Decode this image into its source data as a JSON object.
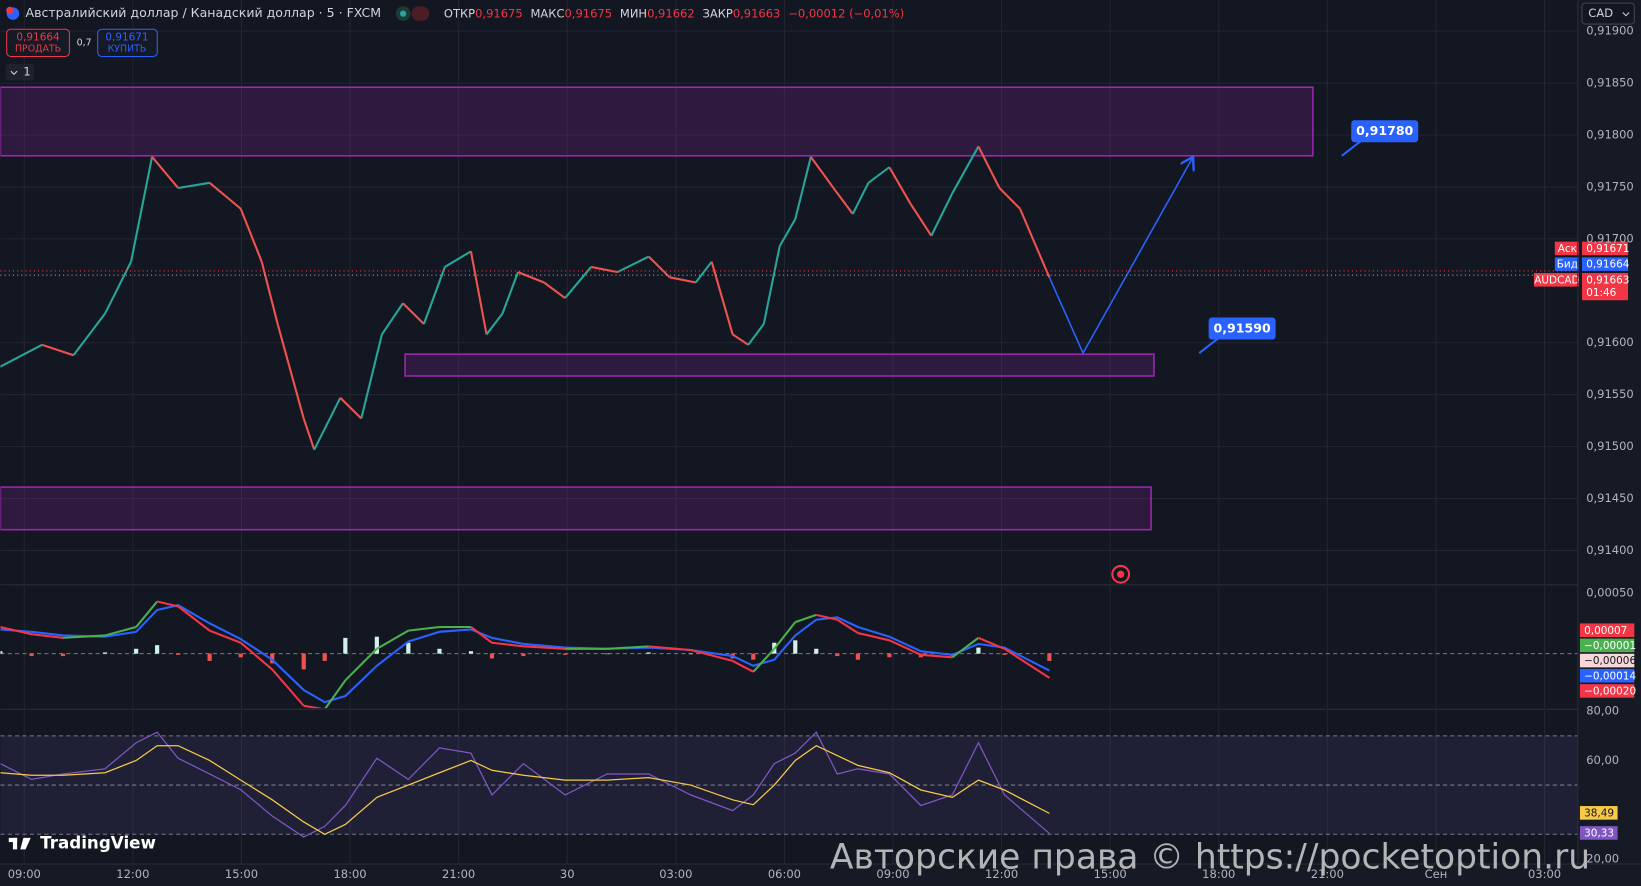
{
  "header": {
    "title": "Австралийский доллар / Канадский доллар · 5 · FXCM",
    "ohlc": [
      {
        "label": "ОТКР",
        "value": "0,91675"
      },
      {
        "label": "МАКС",
        "value": "0,91675"
      },
      {
        "label": "МИН",
        "value": "0,91662"
      },
      {
        "label": "ЗАКР",
        "value": "0,91663"
      }
    ],
    "change": "−0,00012 (−0,01%)",
    "sell": {
      "price": "0,91664",
      "label": "ПРОДАТЬ"
    },
    "spread": "0,7",
    "buy": {
      "price": "0,91671",
      "label": "КУПИТЬ"
    },
    "layers": "1",
    "currency": "CAD"
  },
  "price_labels": [
    {
      "label": "Аск",
      "value": "0,91671",
      "color": "#f23645"
    },
    {
      "label": "Бид",
      "value": "0,91664",
      "color": "#2962ff"
    },
    {
      "label": "AUDCAD",
      "value": "0,91663",
      "time": "01:46",
      "color": "#f23645"
    }
  ],
  "watermark": "TradingView",
  "copyright": "Авторские права © https://pocketoption.ru",
  "chart_data": [
    {
      "type": "line",
      "xlim": [
        -0.66,
        42.92
      ],
      "ylim": [
        0.91368,
        0.9193
      ],
      "xticks": [
        {
          "value": 0,
          "label": "09:00"
        },
        {
          "value": 3,
          "label": "12:00"
        },
        {
          "value": 6,
          "label": "15:00"
        },
        {
          "value": 9,
          "label": "18:00"
        },
        {
          "value": 12,
          "label": "21:00"
        },
        {
          "value": 15,
          "label": "30"
        },
        {
          "value": 18,
          "label": "03:00"
        },
        {
          "value": 21,
          "label": "06:00"
        },
        {
          "value": 24,
          "label": "09:00"
        },
        {
          "value": 27,
          "label": "12:00"
        },
        {
          "value": 30,
          "label": "15:00"
        },
        {
          "value": 33,
          "label": "18:00"
        },
        {
          "value": 36,
          "label": "21:00"
        },
        {
          "value": 39,
          "label": "Сен"
        },
        {
          "value": 42,
          "label": "03:00"
        }
      ],
      "yticks": [
        {
          "value": 0.919,
          "label": "0,91900"
        },
        {
          "value": 0.9185,
          "label": "0,91850"
        },
        {
          "value": 0.918,
          "label": "0,91800"
        },
        {
          "value": 0.9175,
          "label": "0,91750"
        },
        {
          "value": 0.917,
          "label": "0,91700"
        },
        {
          "value": 0.916,
          "label": "0,91600"
        },
        {
          "value": 0.9155,
          "label": "0,91550"
        },
        {
          "value": 0.915,
          "label": "0,91500"
        },
        {
          "value": 0.9145,
          "label": "0,91450"
        },
        {
          "value": 0.914,
          "label": "0,91400"
        }
      ],
      "grid": true,
      "color_up": "#26a69a",
      "color_down": "#ef5350",
      "x": [
        -0.66,
        0.49,
        1.36,
        2.23,
        2.95,
        3.53,
        4.25,
        5.12,
        5.98,
        6.56,
        7.0,
        7.72,
        8.01,
        8.73,
        9.31,
        9.88,
        10.46,
        11.04,
        11.62,
        12.34,
        12.77,
        13.21,
        13.64,
        14.36,
        14.94,
        15.66,
        16.39,
        17.25,
        17.83,
        18.55,
        18.99,
        19.57,
        20.0,
        20.43,
        20.87,
        21.3,
        21.73,
        22.46,
        22.89,
        23.32,
        23.9,
        24.48,
        25.06,
        25.64,
        26.36,
        26.94,
        27.51,
        27.95,
        28.32
      ],
      "values": [
        0.91577,
        0.91598,
        0.91588,
        0.91628,
        0.91678,
        0.91779,
        0.91749,
        0.91754,
        0.91729,
        0.91678,
        0.91618,
        0.91527,
        0.91497,
        0.91547,
        0.91527,
        0.91608,
        0.91638,
        0.91618,
        0.91673,
        0.91688,
        0.91608,
        0.91628,
        0.91668,
        0.91658,
        0.91643,
        0.91673,
        0.91668,
        0.91683,
        0.91663,
        0.91658,
        0.91678,
        0.91608,
        0.91598,
        0.91618,
        0.91693,
        0.91719,
        0.91779,
        0.91744,
        0.91724,
        0.91754,
        0.91769,
        0.91734,
        0.91703,
        0.91744,
        0.91789,
        0.91749,
        0.91729,
        0.91693,
        0.91663
      ],
      "zone_color": "#9c27b0",
      "zones": [
        {
          "x": [
            -0.66,
            35.6
          ],
          "y": [
            0.9178,
            0.91846
          ]
        },
        {
          "x": [
            10.52,
            31.21
          ],
          "y": [
            0.91568,
            0.91589
          ]
        },
        {
          "x": [
            -0.66,
            31.13
          ],
          "y": [
            0.9142,
            0.91461
          ]
        }
      ],
      "projection": {
        "color": "#2962ff",
        "x": [
          28.32,
          29.25,
          32.29
        ],
        "values": [
          0.91663,
          0.9159,
          0.91779
        ]
      },
      "annotation_color": "#2962ff",
      "annotations": [
        {
          "x": 36.4,
          "value": 0.9178,
          "label": "0,91780"
        },
        {
          "x": 32.46,
          "value": 0.9159,
          "label": "0,91590"
        }
      ]
    },
    {
      "type": "macd",
      "xlim": [
        -0.66,
        42.92
      ],
      "ylim": [
        -0.00045,
        0.00056
      ],
      "yticks": [
        {
          "value": 0.0005,
          "label": "0,00050"
        }
      ],
      "x": [
        -0.66,
        0.2,
        1.07,
        2.23,
        3.09,
        3.67,
        4.25,
        5.12,
        5.98,
        6.85,
        7.72,
        8.3,
        8.87,
        9.74,
        10.61,
        11.47,
        12.34,
        12.92,
        13.79,
        14.94,
        16.1,
        17.25,
        18.41,
        19.57,
        20.14,
        20.72,
        21.3,
        21.88,
        22.46,
        23.03,
        23.9,
        24.77,
        25.64,
        26.36,
        27.08,
        28.32
      ],
      "color_up": "#4caf50",
      "color_down": "#f23645",
      "series": [
        {
          "values": [
            0.00022,
            0.00016,
            0.00013,
            0.00015,
            0.00022,
            0.00043,
            0.00039,
            0.00019,
            9e-05,
            -0.00013,
            -0.00043,
            -0.00046,
            -0.00022,
            4e-05,
            0.00019,
            0.00022,
            0.00022,
            9e-05,
            6e-05,
            4e-05,
            4e-05,
            6e-05,
            3e-05,
            -6e-05,
            -0.00015,
            4e-05,
            0.00026,
            0.00032,
            0.00028,
            0.00017,
            0.00011,
            -1e-05,
            -3e-05,
            0.00013,
            4e-05,
            -0.0002
          ]
        },
        {
          "color": "#2962ff",
          "values": [
            0.0002,
            0.00018,
            0.00015,
            0.00014,
            0.00018,
            0.00036,
            0.0004,
            0.00025,
            0.00012,
            -5e-05,
            -0.0003,
            -0.0004,
            -0.00035,
            -0.0001,
            0.0001,
            0.00018,
            0.0002,
            0.00013,
            8e-05,
            5e-05,
            4e-05,
            5e-05,
            3e-05,
            -2e-05,
            -0.0001,
            -5e-05,
            0.00015,
            0.00028,
            0.0003,
            0.00022,
            0.00014,
            2e-05,
            -1e-05,
            8e-05,
            5e-05,
            -0.00014
          ]
        }
      ],
      "histogram": {
        "colors": [
          "#d1f2eb",
          "#ef5350"
        ],
        "values": [
          2e-05,
          -2e-05,
          -2e-05,
          1e-05,
          4e-05,
          7e-05,
          -1e-05,
          -6e-05,
          -3e-05,
          -8e-05,
          -0.00013,
          -6e-05,
          0.00013,
          0.00014,
          9e-05,
          4e-05,
          2e-05,
          -4e-05,
          -2e-05,
          -1e-05,
          0,
          1e-05,
          0,
          -4e-05,
          -5e-05,
          9e-05,
          0.00011,
          4e-05,
          -2e-05,
          -5e-05,
          -3e-05,
          -3e-05,
          -2e-05,
          5e-05,
          -1e-05,
          -6e-05
        ]
      },
      "axis_labels": [
        {
          "label": "0,00007",
          "color": "#f23645"
        },
        {
          "label": "−0,00001",
          "color": "#4caf50"
        },
        {
          "label": "−0,00006",
          "color": "#f8d7da",
          "text_color": "#131722"
        },
        {
          "label": "−0,00014",
          "color": "#2962ff"
        },
        {
          "label": "−0,00020",
          "color": "#f23645"
        }
      ]
    },
    {
      "type": "rsi",
      "xlim": [
        -0.66,
        42.92
      ],
      "ylim": [
        17.9,
        80.4
      ],
      "yticks": [
        {
          "value": 80,
          "label": "80,00"
        },
        {
          "value": 60,
          "label": "60,00"
        },
        {
          "value": 20,
          "label": "20,00"
        }
      ],
      "levels": [
        70,
        50,
        30
      ],
      "band_color": "#7e57c2",
      "x": [
        -0.66,
        0.2,
        1.07,
        2.23,
        3.09,
        3.67,
        4.25,
        5.12,
        5.98,
        6.85,
        7.72,
        8.3,
        8.87,
        9.74,
        10.61,
        11.47,
        12.34,
        12.92,
        13.79,
        14.94,
        16.1,
        17.25,
        18.41,
        19.57,
        20.14,
        20.72,
        21.3,
        21.88,
        22.46,
        23.03,
        23.9,
        24.77,
        25.64,
        26.36,
        27.08,
        28.32
      ],
      "series": [
        {
          "color": "#7e57c2",
          "last_label": "30,33",
          "label_text_color": "#ffffff",
          "values": [
            58.7,
            52.3,
            54.5,
            56.6,
            67.2,
            71.5,
            60.9,
            54.5,
            48.1,
            37.4,
            28.9,
            33.2,
            41.7,
            60.9,
            52.3,
            65.1,
            63.0,
            46.0,
            58.7,
            46.0,
            54.5,
            54.5,
            46.0,
            39.6,
            46.0,
            58.7,
            63.0,
            71.5,
            54.5,
            56.6,
            54.5,
            41.7,
            46.0,
            67.2,
            46.0,
            30.33
          ]
        },
        {
          "color": "#f7c948",
          "last_label": "38,49",
          "label_text_color": "#131722",
          "values": [
            55,
            54,
            54,
            55,
            60,
            66,
            66,
            60,
            52,
            44,
            35,
            30,
            34,
            45,
            50,
            55,
            60,
            56,
            54,
            52,
            52,
            53,
            50,
            44,
            42,
            50,
            60,
            66,
            62,
            58,
            55,
            48,
            45,
            52,
            48,
            38.49
          ]
        }
      ]
    }
  ]
}
